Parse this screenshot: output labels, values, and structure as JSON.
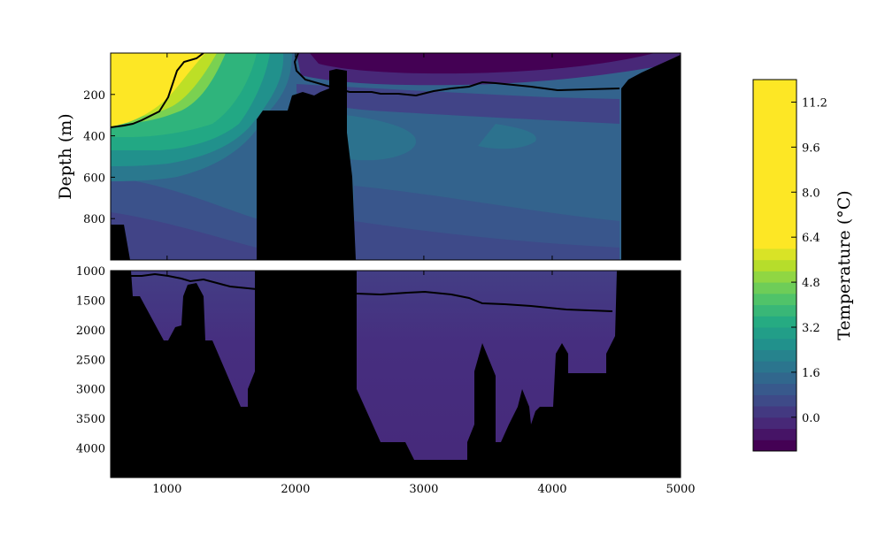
{
  "chart_data": {
    "type": "heatmap",
    "title": "",
    "ylabel": "Depth (m)",
    "colorbar_label": "Temperature (°C)",
    "colorbar": {
      "ticks": [
        11.2,
        9.6,
        8.0,
        6.4,
        4.8,
        3.2,
        1.6,
        0.0
      ],
      "tick_labels": [
        "11.2",
        "9.6",
        "8.0",
        "6.4",
        "4.8",
        "3.2",
        "1.6",
        "0.0"
      ],
      "range": [
        -1.2,
        12.0
      ]
    },
    "x_ticks": [
      1000,
      2000,
      3000,
      4000,
      5000
    ],
    "x_tick_labels": [
      "1000",
      "2000",
      "3000",
      "4000",
      "5000"
    ],
    "xlim": [
      560,
      5000
    ],
    "panels": [
      {
        "name": "upper",
        "ylim": [
          1000,
          0
        ],
        "y_ticks": [
          200,
          400,
          600,
          800
        ],
        "y_tick_labels": [
          "200",
          "400",
          "600",
          "800"
        ]
      },
      {
        "name": "lower",
        "ylim": [
          4500,
          1000
        ],
        "y_ticks": [
          1000,
          1500,
          2000,
          2500,
          3000,
          3500,
          4000
        ],
        "y_tick_labels": [
          "1000",
          "1500",
          "2000",
          "2500",
          "3000",
          "3500",
          "4000"
        ]
      }
    ],
    "contour_line": {
      "x": [
        560,
        700,
        800,
        900,
        1000,
        1080,
        1150,
        1250,
        1350,
        1450,
        1550,
        1700,
        2050,
        2150,
        2250,
        2350,
        2500,
        2600,
        2700,
        2800,
        2900,
        3000,
        3100,
        3300,
        3450,
        3550,
        3650,
        3800,
        4000,
        4200,
        4350,
        4500
      ],
      "depth": [
        310,
        300,
        285,
        230,
        120,
        40,
        25,
        0,
        0,
        0,
        0,
        0,
        0,
        160,
        175,
        180,
        185,
        200,
        200,
        205,
        200,
        195,
        180,
        170,
        155,
        160,
        165,
        170,
        180,
        175,
        170,
        165
      ]
    },
    "contour_line_lower": {
      "x": [
        700,
        800,
        900,
        1000,
        1100,
        1200,
        1300,
        1400,
        1500,
        1600,
        1700,
        2500,
        2700,
        2900,
        3000,
        3200,
        3400,
        3500,
        3700,
        3900,
        4100,
        4300,
        4450
      ],
      "depth": [
        1080,
        1100,
        1080,
        1080,
        1100,
        1150,
        1100,
        1180,
        1250,
        1270,
        1300,
        1370,
        1390,
        1350,
        1340,
        1380,
        1450,
        1560,
        1580,
        1620,
        1640,
        1660,
        1670
      ]
    }
  }
}
